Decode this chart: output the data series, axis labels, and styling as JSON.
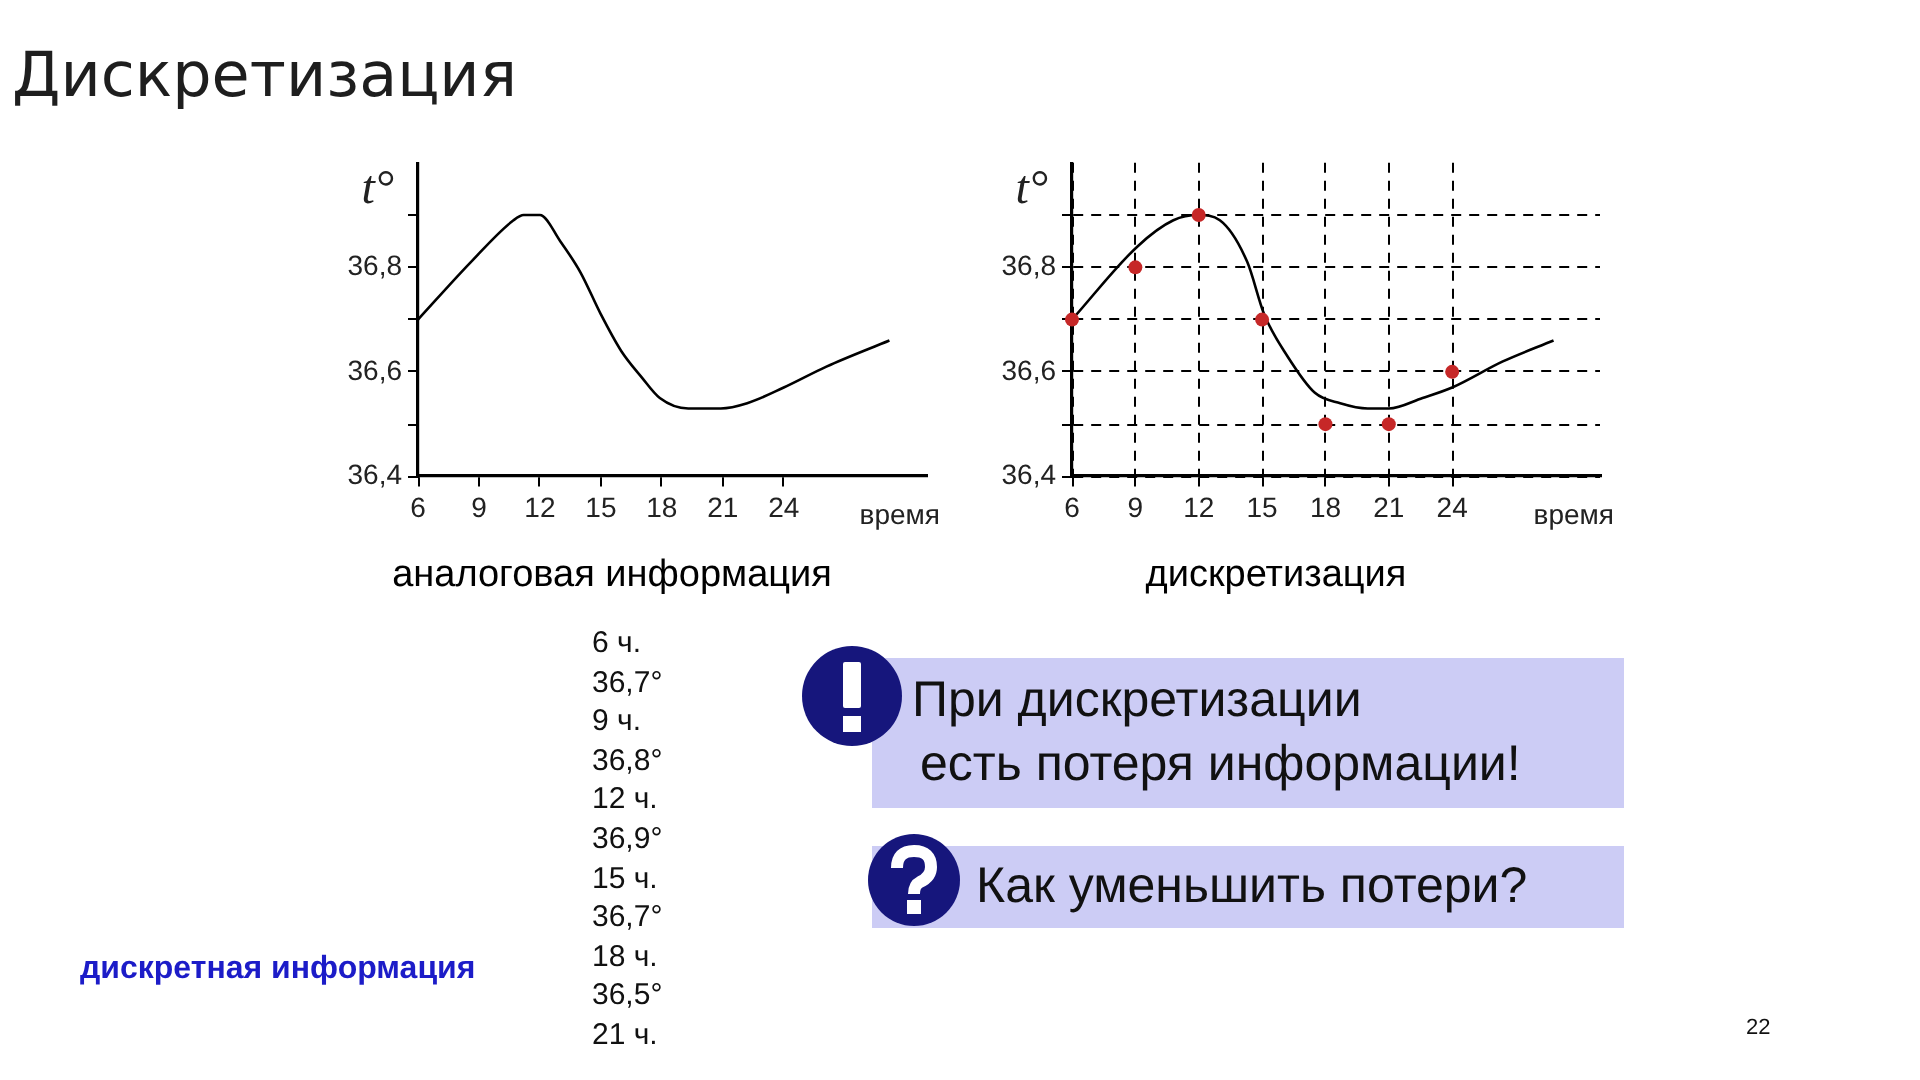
{
  "chart_data": [
    {
      "type": "line",
      "title": "аналоговая информация",
      "xlabel": "время",
      "ylabel": "t°",
      "xlim": [
        6,
        31
      ],
      "ylim": [
        36.4,
        37.0
      ],
      "xticks": [
        6,
        9,
        12,
        15,
        18,
        21,
        24
      ],
      "yticks": [
        {
          "value": 36.4,
          "label": "36,4"
        },
        {
          "value": 36.5,
          "label": null
        },
        {
          "value": 36.6,
          "label": "36,6"
        },
        {
          "value": 36.7,
          "label": null
        },
        {
          "value": 36.8,
          "label": "36,8"
        },
        {
          "value": 36.9,
          "label": null
        }
      ],
      "series": [
        {
          "type": "line",
          "color": "#000000",
          "x": [
            6,
            8.6,
            10.7,
            11.2,
            12,
            13,
            14,
            15,
            16,
            17,
            17.9,
            19.3,
            20.9,
            22.2,
            24,
            26.1,
            29.2
          ],
          "values": [
            36.7,
            36.81,
            36.89,
            36.9,
            36.9,
            36.85,
            36.79,
            36.71,
            36.64,
            36.59,
            36.55,
            36.53,
            36.53,
            36.54,
            36.57,
            36.61,
            36.66
          ]
        }
      ]
    },
    {
      "type": "line",
      "title": "дискретизация",
      "xlabel": "время",
      "ylabel": "t°",
      "grid": true,
      "xlim": [
        6,
        31
      ],
      "ylim": [
        36.4,
        37.0
      ],
      "xticks": [
        6,
        9,
        12,
        15,
        18,
        21,
        24
      ],
      "yticks": [
        {
          "value": 36.4,
          "label": "36,4"
        },
        {
          "value": 36.5,
          "label": null
        },
        {
          "value": 36.6,
          "label": "36,6"
        },
        {
          "value": 36.7,
          "label": null
        },
        {
          "value": 36.8,
          "label": "36,8"
        },
        {
          "value": 36.9,
          "label": null
        }
      ],
      "annotations": [
        "6 ч.\n36,7°\n9 ч.\n36,8°\n12 ч.\n36,9°\n15 ч.\n36,7°\n18 ч.\n36,5°\n21 ч.",
        "дискретная информация"
      ],
      "series": [
        {
          "type": "line",
          "color": "#000000",
          "x": [
            6,
            9.1,
            10.8,
            12,
            13,
            14.3,
            15.1,
            16.2,
            17.5,
            18.7,
            20,
            21,
            22.6,
            24,
            26.4,
            28.8
          ],
          "values": [
            36.7,
            36.84,
            36.89,
            36.9,
            36.89,
            36.81,
            36.71,
            36.63,
            36.56,
            36.54,
            36.53,
            36.53,
            36.55,
            36.57,
            36.62,
            36.66
          ]
        },
        {
          "type": "scatter",
          "color": "#c62828",
          "marker": "circle",
          "x": [
            6,
            9,
            12,
            15,
            18,
            21,
            24
          ],
          "values": [
            36.7,
            36.8,
            36.9,
            36.7,
            36.5,
            36.5,
            36.6
          ]
        }
      ]
    },
    {
      "type": "other",
      "title": "Дискретизация",
      "annotations": [
        "При дискретизации",
        "есть потеря информации!",
        "Как уменьшить потери?",
        "22"
      ]
    }
  ]
}
